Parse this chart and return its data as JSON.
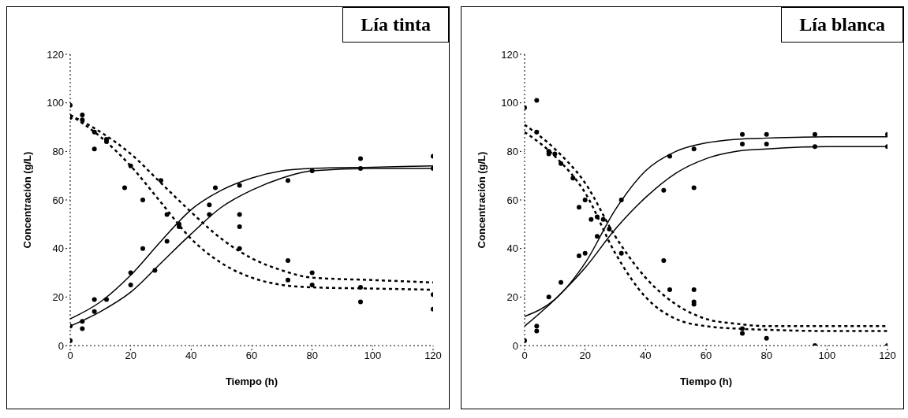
{
  "chart_data": [
    {
      "type": "line",
      "title": "Lía tinta",
      "xlabel": "Tiempo (h)",
      "ylabel": "Concentración (g/L)",
      "xlim": [
        0,
        120
      ],
      "ylim": [
        0,
        120
      ],
      "xticks": [
        0,
        20,
        40,
        60,
        80,
        100,
        120
      ],
      "yticks": [
        0,
        20,
        40,
        60,
        80,
        100,
        120
      ],
      "grid": false,
      "legend": false,
      "marker": "none",
      "series": [
        {
          "type": "scatter",
          "color": "#000000",
          "marker": "circle",
          "x": [
            0,
            0,
            4,
            4,
            8,
            8,
            12,
            12,
            18,
            20,
            24,
            30,
            32,
            36,
            46,
            46,
            56,
            56,
            56,
            72,
            72,
            80,
            80,
            96,
            96,
            120,
            120,
            0,
            0,
            4,
            4,
            8,
            8,
            12,
            20,
            20,
            24,
            28,
            32,
            36,
            48,
            56,
            72,
            80,
            96,
            96,
            120,
            120
          ],
          "values": [
            99,
            94,
            95,
            93,
            88,
            81,
            85,
            84,
            65,
            74,
            60,
            68,
            54,
            50,
            58,
            54,
            54,
            49,
            40,
            35,
            27,
            30,
            25,
            24,
            18,
            21,
            15,
            8,
            2,
            10,
            7,
            19,
            14,
            19,
            30,
            25,
            40,
            31,
            43,
            49,
            65,
            66,
            68,
            72,
            77,
            73,
            78,
            73
          ]
        },
        {
          "type": "line",
          "color": "#000000",
          "line_style": "solid",
          "x": [
            0,
            10,
            20,
            30,
            40,
            50,
            60,
            70,
            80,
            100,
            120
          ],
          "values": [
            11,
            18,
            29,
            43,
            56,
            64,
            69,
            72,
            73,
            73.5,
            74
          ]
        },
        {
          "type": "line",
          "color": "#000000",
          "line_style": "solid",
          "x": [
            0,
            10,
            20,
            30,
            40,
            50,
            60,
            70,
            80,
            100,
            120
          ],
          "values": [
            8,
            14,
            22,
            34,
            46,
            57,
            64,
            69,
            72,
            73,
            73
          ]
        },
        {
          "type": "line",
          "color": "#000000",
          "line_style": "dashed",
          "x": [
            0,
            10,
            20,
            30,
            40,
            50,
            60,
            70,
            80,
            100,
            120
          ],
          "values": [
            95,
            88,
            79,
            67,
            55,
            44,
            36,
            31,
            28,
            27,
            26
          ]
        },
        {
          "type": "line",
          "color": "#000000",
          "line_style": "dashed",
          "x": [
            0,
            10,
            20,
            30,
            40,
            50,
            60,
            70,
            80,
            100,
            120
          ],
          "values": [
            95,
            86,
            74,
            59,
            44,
            34,
            28,
            25,
            24,
            23.5,
            23
          ]
        }
      ]
    },
    {
      "type": "line",
      "title": "Lía blanca",
      "xlabel": "Tiempo (h)",
      "ylabel": "Concentración (g/L)",
      "xlim": [
        0,
        120
      ],
      "ylim": [
        0,
        120
      ],
      "xticks": [
        0,
        20,
        40,
        60,
        80,
        100,
        120
      ],
      "yticks": [
        0,
        20,
        40,
        60,
        80,
        100,
        120
      ],
      "grid": false,
      "legend": false,
      "marker": "none",
      "series": [
        {
          "type": "scatter",
          "color": "#000000",
          "marker": "circle",
          "x": [
            0,
            4,
            4,
            8,
            8,
            10,
            12,
            16,
            18,
            20,
            22,
            24,
            26,
            28,
            32,
            46,
            48,
            56,
            56,
            56,
            72,
            72,
            80,
            96,
            120,
            0,
            4,
            4,
            8,
            12,
            18,
            20,
            24,
            32,
            46,
            48,
            56,
            56,
            72,
            72,
            80,
            80,
            96,
            96,
            120,
            120
          ],
          "values": [
            98,
            101,
            88,
            79,
            80,
            79,
            75,
            69,
            57,
            60,
            52,
            53,
            52,
            48,
            38,
            35,
            23,
            23,
            18,
            17,
            7,
            5,
            3,
            0,
            0,
            2,
            8,
            6,
            20,
            26,
            37,
            38,
            45,
            60,
            64,
            78,
            81,
            65,
            87,
            83,
            87,
            83,
            87,
            82,
            87,
            82
          ]
        },
        {
          "type": "line",
          "color": "#000000",
          "line_style": "solid",
          "x": [
            0,
            10,
            20,
            30,
            40,
            50,
            60,
            70,
            80,
            100,
            120
          ],
          "values": [
            12,
            19,
            34,
            56,
            72,
            80,
            83.5,
            85,
            85.5,
            86,
            86
          ]
        },
        {
          "type": "line",
          "color": "#000000",
          "line_style": "solid",
          "x": [
            0,
            10,
            20,
            30,
            40,
            50,
            60,
            70,
            80,
            100,
            120
          ],
          "values": [
            8,
            19,
            32,
            48,
            61,
            71,
            77,
            80,
            81,
            82,
            82
          ]
        },
        {
          "type": "line",
          "color": "#000000",
          "line_style": "dashed",
          "x": [
            0,
            10,
            20,
            30,
            40,
            50,
            60,
            70,
            80,
            100,
            120
          ],
          "values": [
            91,
            81,
            67,
            45,
            28,
            17,
            11,
            9,
            8,
            8,
            8
          ]
        },
        {
          "type": "line",
          "color": "#000000",
          "line_style": "dashed",
          "x": [
            0,
            10,
            20,
            30,
            40,
            50,
            60,
            70,
            80,
            100,
            120
          ],
          "values": [
            88,
            78,
            63,
            38,
            20,
            11,
            8,
            7,
            6.5,
            6,
            6
          ]
        }
      ]
    }
  ]
}
